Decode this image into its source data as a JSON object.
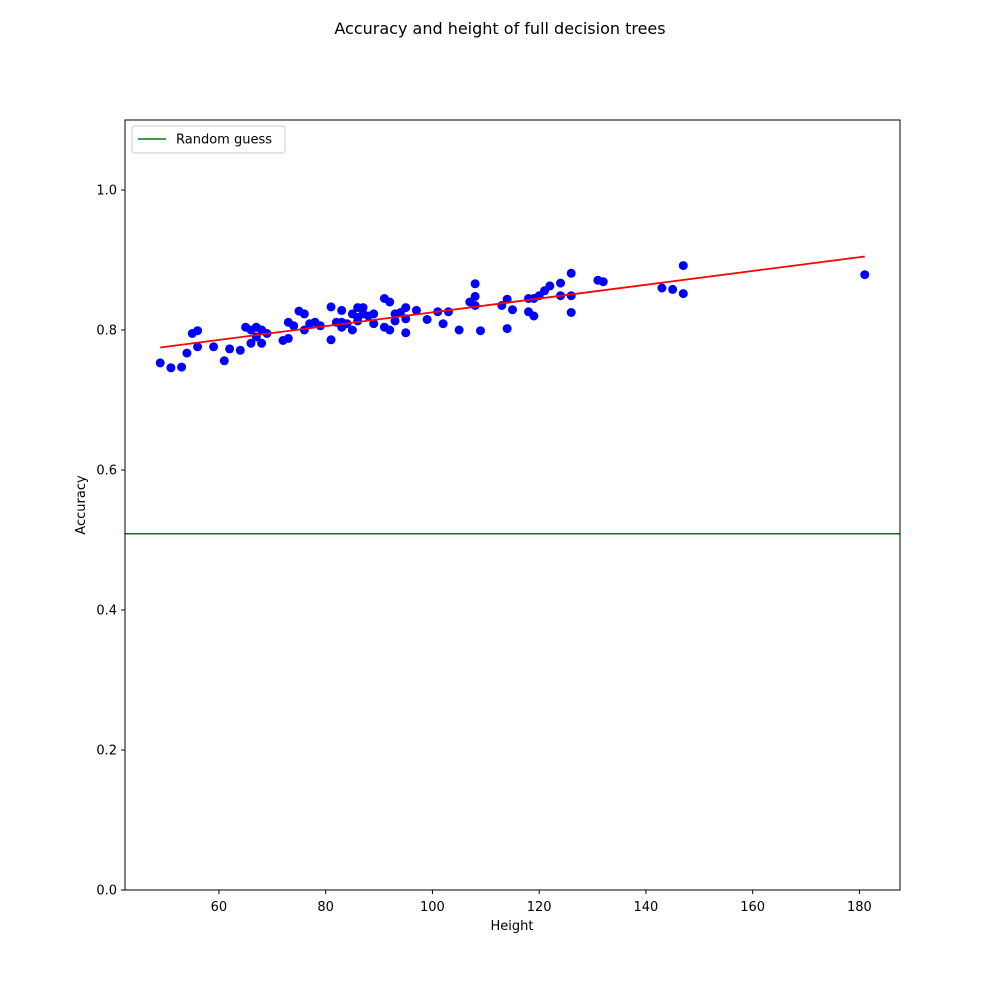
{
  "chart_data": {
    "type": "scatter",
    "title": "Accuracy and height of full decision trees",
    "xlabel": "Height",
    "ylabel": "Accuracy",
    "xlim": [
      42.4,
      187.6
    ],
    "ylim": [
      0,
      1.1
    ],
    "xticks": [
      "60",
      "80",
      "100",
      "120",
      "140",
      "160",
      "180"
    ],
    "yticks": [
      "0.0",
      "0.2",
      "0.4",
      "0.6",
      "0.8",
      "1.0"
    ],
    "grid": false,
    "legend": {
      "placement": "upper-left",
      "entries": [
        "Random guess"
      ]
    },
    "colors": {
      "points": "#0000ff",
      "fit_line": "#ff0000",
      "baseline": "#008000"
    },
    "points": [
      [
        49,
        0.753
      ],
      [
        51,
        0.746
      ],
      [
        53,
        0.747
      ],
      [
        54,
        0.767
      ],
      [
        55,
        0.795
      ],
      [
        56,
        0.799
      ],
      [
        56,
        0.776
      ],
      [
        59,
        0.776
      ],
      [
        61,
        0.756
      ],
      [
        62,
        0.773
      ],
      [
        64,
        0.771
      ],
      [
        65,
        0.804
      ],
      [
        66,
        0.8
      ],
      [
        66,
        0.781
      ],
      [
        67,
        0.804
      ],
      [
        67,
        0.79
      ],
      [
        68,
        0.8
      ],
      [
        68,
        0.781
      ],
      [
        69,
        0.795
      ],
      [
        72,
        0.785
      ],
      [
        73,
        0.811
      ],
      [
        73,
        0.788
      ],
      [
        74,
        0.806
      ],
      [
        75,
        0.827
      ],
      [
        76,
        0.823
      ],
      [
        76,
        0.8
      ],
      [
        77,
        0.809
      ],
      [
        78,
        0.811
      ],
      [
        79,
        0.806
      ],
      [
        81,
        0.833
      ],
      [
        81,
        0.786
      ],
      [
        82,
        0.811
      ],
      [
        83,
        0.828
      ],
      [
        83,
        0.811
      ],
      [
        83,
        0.804
      ],
      [
        84,
        0.809
      ],
      [
        85,
        0.823
      ],
      [
        85,
        0.8
      ],
      [
        86,
        0.832
      ],
      [
        86,
        0.818
      ],
      [
        86,
        0.813
      ],
      [
        87,
        0.832
      ],
      [
        87,
        0.823
      ],
      [
        88,
        0.82
      ],
      [
        89,
        0.823
      ],
      [
        89,
        0.809
      ],
      [
        91,
        0.845
      ],
      [
        91,
        0.804
      ],
      [
        92,
        0.84
      ],
      [
        92,
        0.8
      ],
      [
        93,
        0.823
      ],
      [
        93,
        0.813
      ],
      [
        94,
        0.825
      ],
      [
        95,
        0.832
      ],
      [
        95,
        0.816
      ],
      [
        95,
        0.796
      ],
      [
        97,
        0.828
      ],
      [
        99,
        0.815
      ],
      [
        101,
        0.826
      ],
      [
        102,
        0.809
      ],
      [
        103,
        0.826
      ],
      [
        105,
        0.8
      ],
      [
        107,
        0.84
      ],
      [
        108,
        0.866
      ],
      [
        108,
        0.848
      ],
      [
        108,
        0.835
      ],
      [
        109,
        0.799
      ],
      [
        113,
        0.835
      ],
      [
        114,
        0.844
      ],
      [
        114,
        0.802
      ],
      [
        115,
        0.829
      ],
      [
        118,
        0.845
      ],
      [
        118,
        0.826
      ],
      [
        119,
        0.845
      ],
      [
        119,
        0.82
      ],
      [
        120,
        0.849
      ],
      [
        121,
        0.856
      ],
      [
        122,
        0.863
      ],
      [
        124,
        0.867
      ],
      [
        124,
        0.849
      ],
      [
        126,
        0.881
      ],
      [
        126,
        0.849
      ],
      [
        126,
        0.825
      ],
      [
        131,
        0.871
      ],
      [
        132,
        0.869
      ],
      [
        143,
        0.86
      ],
      [
        145,
        0.858
      ],
      [
        147,
        0.892
      ],
      [
        147,
        0.852
      ],
      [
        181,
        0.879
      ]
    ],
    "fit_line": {
      "x": [
        49,
        181
      ],
      "y": [
        0.775,
        0.905
      ]
    },
    "baseline": {
      "y": 0.509,
      "label": "Random guess"
    }
  }
}
